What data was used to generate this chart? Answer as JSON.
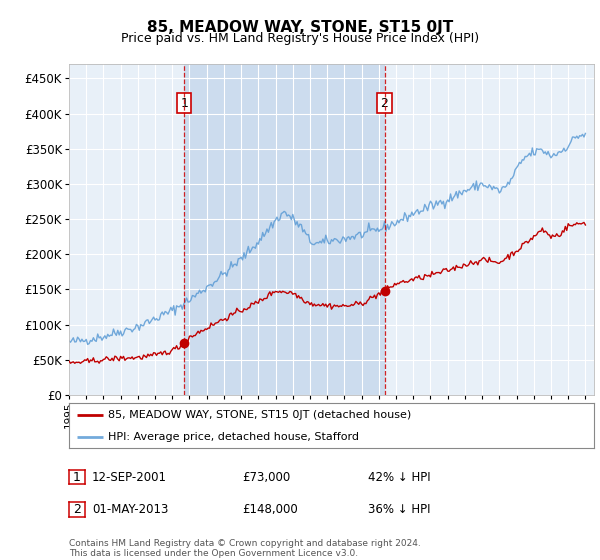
{
  "title": "85, MEADOW WAY, STONE, ST15 0JT",
  "subtitle": "Price paid vs. HM Land Registry's House Price Index (HPI)",
  "legend_line1": "85, MEADOW WAY, STONE, ST15 0JT (detached house)",
  "legend_line2": "HPI: Average price, detached house, Stafford",
  "annotation1_date": "12-SEP-2001",
  "annotation1_price": "£73,000",
  "annotation1_hpi": "42% ↓ HPI",
  "annotation2_date": "01-MAY-2013",
  "annotation2_price": "£148,000",
  "annotation2_hpi": "36% ↓ HPI",
  "footnote1": "Contains HM Land Registry data © Crown copyright and database right 2024.",
  "footnote2": "This data is licensed under the Open Government Licence v3.0.",
  "hpi_color": "#5b9bd5",
  "property_color": "#c00000",
  "plot_bg": "#e8f0f8",
  "highlight_bg": "#ccdcee",
  "sale1_year": 2001.7,
  "sale2_year": 2013.33,
  "sale1_price": 73000,
  "sale2_price": 148000,
  "xlim_min": 1995,
  "xlim_max": 2025.5,
  "ylim_min": 0,
  "ylim_max": 470000
}
